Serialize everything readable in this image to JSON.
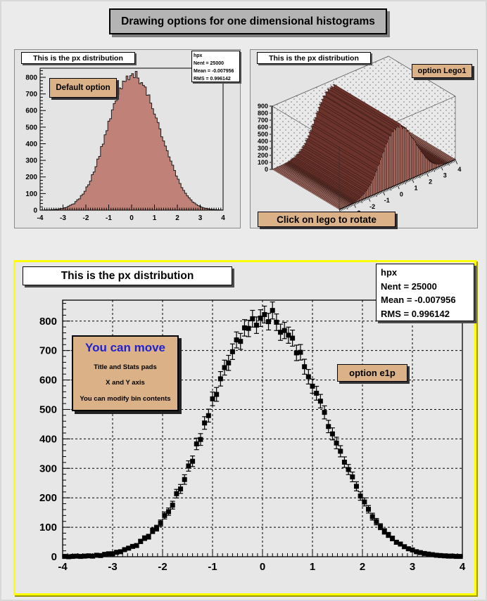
{
  "page": {
    "title": "Drawing options for one dimensional histograms"
  },
  "colors": {
    "canvas_bg": "#ebebeb",
    "pad_bg": "#e4e4e4",
    "hist_fill": "#c08278",
    "hist_line": "#1a1a1a",
    "lego_front": "#bf7e73",
    "lego_side": "#6b332b",
    "lego_top": "#c98d82",
    "button_bg": "#dbb287",
    "pave_bg": "#ffffff",
    "panel_border": "#ffff00",
    "title_bg": "#b4b4b4",
    "note_heading": "#2222cc",
    "marker": "#000000"
  },
  "pad_default": {
    "title": "This is the px distribution",
    "button": "Default option",
    "stats": {
      "l1": "hpx",
      "l2": "Nent = 25000",
      "l3": "Mean = -0.007956",
      "l4": "RMS = 0.996142"
    }
  },
  "pad_lego": {
    "title": "This is the px distribution",
    "button": "option Lego1",
    "rotate_button": "Click on lego to rotate"
  },
  "pad_e1p": {
    "title": "This is the px distribution",
    "button": "option e1p",
    "stats": {
      "l1": "hpx",
      "l2": "Nent = 25000",
      "l3": "Mean = -0.007956",
      "l4": "RMS = 0.996142"
    },
    "note": {
      "heading": "You can move",
      "lines": [
        "Title and Stats pads",
        "X and Y axis",
        "You can modify bin contents"
      ]
    }
  },
  "chart_data": [
    {
      "id": "default-option-histogram",
      "type": "bar",
      "title": "This is the px distribution",
      "histogram_name": "hpx",
      "entries": 25000,
      "mean": -0.007956,
      "rms": 0.996142,
      "bins": 100,
      "x_range": [
        -4,
        4
      ],
      "ylim": [
        0,
        855
      ],
      "xticks": [
        -4,
        -3,
        -2,
        -1,
        0,
        1,
        2,
        3,
        4
      ],
      "yticks": [
        0,
        100,
        200,
        300,
        400,
        500,
        600,
        700,
        800
      ],
      "fill_color": "#c08278",
      "values": [
        1,
        0,
        1,
        2,
        1,
        2,
        3,
        2,
        5,
        4,
        8,
        10,
        10,
        15,
        17,
        24,
        29,
        35,
        38,
        52,
        63,
        68,
        88,
        97,
        114,
        140,
        153,
        175,
        214,
        230,
        262,
        308,
        324,
        383,
        398,
        454,
        479,
        536,
        551,
        604,
        642,
        658,
        696,
        736,
        731,
        777,
        775,
        808,
        786,
        810,
        822,
        798,
        836,
        796,
        762,
        768,
        752,
        742,
        692,
        694,
        645,
        611,
        579,
        555,
        528,
        490,
        442,
        417,
        386,
        358,
        321,
        296,
        271,
        239,
        206,
        186,
        161,
        136,
        119,
        102,
        86,
        74,
        62,
        49,
        43,
        34,
        27,
        23,
        17,
        14,
        11,
        9,
        7,
        5,
        4,
        3,
        2,
        2,
        1,
        1
      ]
    },
    {
      "id": "lego1-histogram",
      "type": "bar",
      "projection": "lego-3d",
      "title": "This is the px distribution",
      "series_ref": "chart_data.0.values",
      "x_range": [
        -4,
        4
      ],
      "zlim": [
        0,
        900
      ],
      "zticks": [
        0,
        100,
        200,
        300,
        400,
        500,
        600,
        700,
        800,
        900
      ],
      "xticks": [
        -3,
        -2,
        -1,
        0,
        1,
        2,
        3,
        4
      ],
      "front_color": "#bf7e73",
      "side_color": "#6b332b",
      "top_color": "#c98d82"
    },
    {
      "id": "e1p-histogram",
      "type": "scatter",
      "subtype": "error-bars",
      "title": "This is the px distribution",
      "marker": "filled-square",
      "error_rule": "sqrt(n)",
      "series_ref": "chart_data.0.values",
      "x_range": [
        -4,
        4
      ],
      "ylim": [
        0,
        871
      ],
      "xticks": [
        -4,
        -3,
        -2,
        -1,
        0,
        1,
        2,
        3,
        4
      ],
      "yticks": [
        0,
        100,
        200,
        300,
        400,
        500,
        600,
        700,
        800
      ],
      "grid": "dashed"
    }
  ]
}
